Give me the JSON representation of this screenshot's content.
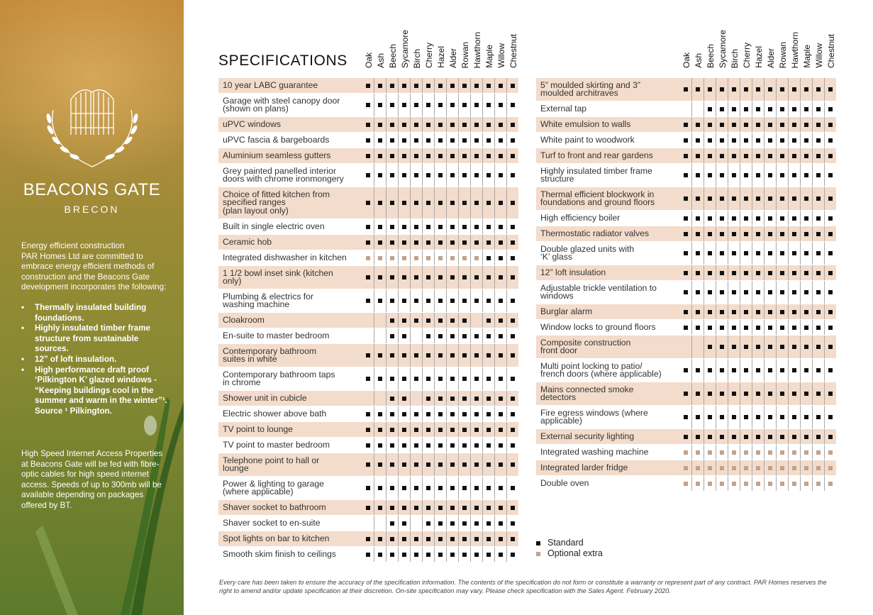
{
  "sidebar": {
    "brand": "BEACONS GATE",
    "town": "BRECON",
    "intro": "Energy efficient construction\nPAR Homes Ltd are committed to embrace energy efficient methods of construction and the Beacons Gate development incorporates the following:",
    "bullets": [
      "Thermally insulated building foundations.",
      "Highly insulated timber frame structure from sustainable sources.",
      "12” of loft insulation.",
      "High performance draft proof ‘Pilkington K’ glazed windows - “Keeping buildings cool in the summer and warm in the winter”¹."
    ],
    "source": "Source ¹ Pilkington.",
    "internet": "High Speed Internet Access Properties at Beacons Gate will be fed with fibre-optic cables for high speed internet access. Speeds of up to 300mb will be available depending on packages offered by BT."
  },
  "title": "SPECIFICATIONS",
  "house_types": [
    "Oak",
    "Ash",
    "Beech",
    "Sycamore",
    "Birch",
    "Cherry",
    "Hazel",
    "Alder",
    "Rowan",
    "Hawthorn",
    "Maple",
    "Willow",
    "Chestnut"
  ],
  "key": {
    "S": "standard",
    "O": "optional extra",
    "-": "not included"
  },
  "colors": {
    "standard": "#111111",
    "optional": "#c4a28a",
    "row_shade": "#f3dccb"
  },
  "left_table": [
    {
      "label": "10 year LABC guarantee",
      "marks": "SSSSSSSSSSSSS"
    },
    {
      "label": "Garage with steel canopy door\n(shown on plans)",
      "marks": "SSSSSSSSSSSSS"
    },
    {
      "label": "uPVC windows",
      "marks": "SSSSSSSSSSSSS"
    },
    {
      "label": "uPVC fascia & bargeboards",
      "marks": "SSSSSSSSSSSSS"
    },
    {
      "label": "Aluminium seamless gutters",
      "marks": "SSSSSSSSSSSSS"
    },
    {
      "label": "Grey painted panelled interior\ndoors with chrome ironmongery",
      "marks": "SSSSSSSSSSSSS"
    },
    {
      "label": "Choice of fitted kitchen from\nspecified ranges\n(plan layout only)",
      "marks": "SSSSSSSSSSSSS"
    },
    {
      "label": "Built in single electric oven",
      "marks": "SSSSSSSSSSSSS"
    },
    {
      "label": "Ceramic hob",
      "marks": "SSSSSSSSSSSSS"
    },
    {
      "label": "Integrated dishwasher in kitchen",
      "marks": "OOOOOOOOOOSSS"
    },
    {
      "label": "1 1/2 bowl inset sink (kitchen\nonly)",
      "marks": "SSSSSSSSSSSSS"
    },
    {
      "label": "Plumbing & electrics for\nwashing machine",
      "marks": "SSSSSSSSSSSSS"
    },
    {
      "label": " Cloakroom",
      "marks": "--SSSSSSS-SSS"
    },
    {
      "label": " En-suite to master bedroom",
      "marks": "--SS-SSSSSSSS"
    },
    {
      "label": "   Contemporary bathroom\n   suites in white",
      "marks": "SSSSSSSSSSSSS"
    },
    {
      "label": " Contemporary bathroom taps\nin chrome",
      "marks": "SSSSSSSSSSSSS"
    },
    {
      "label": "Shower unit in cubicle",
      "marks": "--SS-SSSSSSSS"
    },
    {
      "label": "Electric shower above bath",
      "marks": "SSSSSSSSSSSSS"
    },
    {
      "label": "TV point to lounge",
      "marks": "SSSSSSSSSSSSS"
    },
    {
      "label": "TV point to master bedroom",
      "marks": "SSSSSSSSSSSSS"
    },
    {
      "label": "Telephone point to hall or\nlounge",
      "marks": "SSSSSSSSSSSSS"
    },
    {
      "label": "Power & lighting to garage\n(where applicable)",
      "marks": "SSSSSSSSSSSSS"
    },
    {
      "label": "Shaver socket to bathroom",
      "marks": "SSSSSSSSSSSSS"
    },
    {
      "label": "Shaver socket to en-suite",
      "marks": "--SS-SSSSSSSS"
    },
    {
      "label": "Spot lights on bar to kitchen",
      "marks": "SSSSSSSSSSSSS"
    },
    {
      "label": "Smooth skim finish to ceilings",
      "marks": "SSSSSSSSSSSSS"
    }
  ],
  "right_table": [
    {
      "label": "5” moulded skirting and 3”\nmoulded architraves",
      "marks": "SSSSSSSSSSSSS"
    },
    {
      "label": "External tap",
      "marks": "--SSSSSSSSSSS"
    },
    {
      "label": "White emulsion to walls",
      "marks": "SSSSSSSSSSSSS"
    },
    {
      "label": "White paint to woodwork",
      "marks": "SSSSSSSSSSSSS"
    },
    {
      "label": "Turf to front and rear gardens",
      "marks": "SSSSSSSSSSSSS"
    },
    {
      "label": "Highly insulated timber frame\nstructure",
      "marks": "SSSSSSSSSSSSS"
    },
    {
      "label": "Thermal efficient blockwork in\nfoundations and ground floors",
      "marks": "SSSSSSSSSSSSS"
    },
    {
      "label": "High efficiency boiler",
      "marks": "SSSSSSSSSSSSS"
    },
    {
      "label": "Thermostatic radiator valves",
      "marks": "SSSSSSSSSSSSS"
    },
    {
      "label": "Double glazed units with\n‘K’ glass",
      "marks": "SSSSSSSSSSSSS"
    },
    {
      "label": "12” loft insulation",
      "marks": "SSSSSSSSSSSSS"
    },
    {
      "label": "Adjustable trickle ventilation to\nwindows",
      "marks": "SSSSSSSSSSSSS"
    },
    {
      "label": "Burglar alarm",
      "marks": "SSSSSSSSSSSSS"
    },
    {
      "label": "Window locks to ground floors",
      "marks": "SSSSSSSSSSSSS"
    },
    {
      "label": "Composite construction\nfront door",
      "marks": "--SSSSSSSSSSS"
    },
    {
      "label": "Multi point locking to patio/\nfrench doors (where applicable)",
      "marks": "SSSSSSSSSSSSS"
    },
    {
      "label": "Mains connected smoke\ndetectors",
      "marks": "SSSSSSSSSSSSS"
    },
    {
      "label": "Fire egress windows (where\napplicable)",
      "marks": "SSSSSSSSSSSSS"
    },
    {
      "label": "External security lighting",
      "marks": "SSSSSSSSSSSSS"
    },
    {
      "label": "Integrated washing machine",
      "marks": "OOOOOOOOOOOOO"
    },
    {
      "label": "Integrated larder fridge",
      "marks": "OOOOOOOOOOOOO"
    },
    {
      "label": "Double oven",
      "marks": "OOOOOOOOOOOOO"
    }
  ],
  "legend": {
    "standard": "Standard",
    "optional": "Optional extra"
  },
  "footer": "Every care has been taken to ensure the accuracy of the specification information. The contents of the specification do not form or constitute a warranty or represent part of any contract. PAR Homes reserves the right to amend and/or update specification at their discretion. On-site specification may vary. Please check specification with the Sales Agent. February 2020."
}
